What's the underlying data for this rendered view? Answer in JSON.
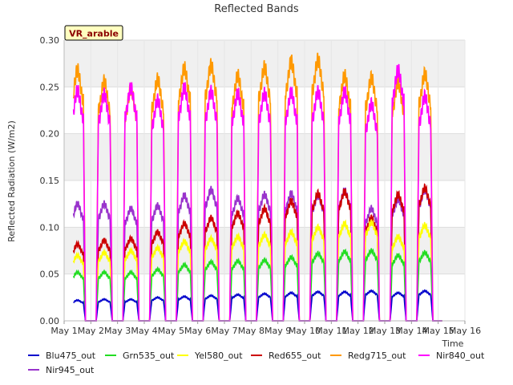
{
  "chart_data": {
    "type": "line",
    "title": "Reflected Bands",
    "xlabel": "Time",
    "ylabel": "Reflected Radiation (W/m2)",
    "badge": "VR_arable",
    "xlim": [
      1,
      16
    ],
    "ylim": [
      0,
      0.3
    ],
    "x_ticks": [
      {
        "x": 1,
        "label": "May 1"
      },
      {
        "x": 2,
        "label": "May 2"
      },
      {
        "x": 3,
        "label": "May 3"
      },
      {
        "x": 4,
        "label": "May 4"
      },
      {
        "x": 5,
        "label": "May 5"
      },
      {
        "x": 6,
        "label": "May 6"
      },
      {
        "x": 7,
        "label": "May 7"
      },
      {
        "x": 8,
        "label": "May 8"
      },
      {
        "x": 9,
        "label": "May 9"
      },
      {
        "x": 10,
        "label": "May 10"
      },
      {
        "x": 11,
        "label": "May 11"
      },
      {
        "x": 12,
        "label": "May 12"
      },
      {
        "x": 13,
        "label": "May 13"
      },
      {
        "x": 14,
        "label": "May 14"
      },
      {
        "x": 15,
        "label": "May 15"
      },
      {
        "x": 16,
        "label": "May 16"
      }
    ],
    "y_ticks": [
      {
        "y": 0.0,
        "label": "0.00"
      },
      {
        "y": 0.05,
        "label": "0.05"
      },
      {
        "y": 0.1,
        "label": "0.10"
      },
      {
        "y": 0.15,
        "label": "0.15"
      },
      {
        "y": 0.2,
        "label": "0.20"
      },
      {
        "y": 0.25,
        "label": "0.25"
      },
      {
        "y": 0.3,
        "label": "0.30"
      }
    ],
    "grid": true,
    "legend_position": "bottom",
    "days": [
      1.5,
      2.5,
      3.5,
      4.5,
      5.5,
      6.5,
      7.5,
      8.5,
      9.5,
      10.5,
      11.5,
      12.5,
      13.5,
      14.5
    ],
    "series": [
      {
        "name": "Blu475_out",
        "color": "#0000cc",
        "values": [
          0.022,
          0.023,
          0.023,
          0.025,
          0.026,
          0.027,
          0.028,
          0.029,
          0.03,
          0.031,
          0.031,
          0.032,
          0.03,
          0.032
        ]
      },
      {
        "name": "Grn535_out",
        "color": "#22dd22",
        "values": [
          0.052,
          0.052,
          0.052,
          0.055,
          0.06,
          0.063,
          0.064,
          0.065,
          0.068,
          0.072,
          0.074,
          0.075,
          0.07,
          0.073
        ]
      },
      {
        "name": "Yel580_out",
        "color": "#ffff00",
        "values": [
          0.07,
          0.073,
          0.075,
          0.078,
          0.085,
          0.088,
          0.09,
          0.092,
          0.095,
          0.1,
          0.104,
          0.105,
          0.09,
          0.102
        ]
      },
      {
        "name": "Red655_out",
        "color": "#cc0000",
        "values": [
          0.082,
          0.086,
          0.088,
          0.095,
          0.104,
          0.11,
          0.115,
          0.12,
          0.128,
          0.136,
          0.138,
          0.11,
          0.135,
          0.142
        ]
      },
      {
        "name": "Redg715_out",
        "color": "#ff9900",
        "values": [
          0.268,
          0.256,
          0.248,
          0.258,
          0.27,
          0.273,
          0.262,
          0.271,
          0.277,
          0.279,
          0.262,
          0.26,
          0.255,
          0.264
        ]
      },
      {
        "name": "Nir840_out",
        "color": "#ff00ff",
        "values": [
          0.246,
          0.242,
          0.249,
          0.236,
          0.249,
          0.245,
          0.243,
          0.243,
          0.244,
          0.245,
          0.245,
          0.232,
          0.268,
          0.24
        ]
      },
      {
        "name": "Nir945_out",
        "color": "#9933cc",
        "values": [
          0.125,
          0.125,
          0.12,
          0.123,
          0.134,
          0.14,
          0.131,
          0.135,
          0.136,
          0.134,
          0.139,
          0.12,
          0.13,
          0.14
        ]
      }
    ]
  }
}
